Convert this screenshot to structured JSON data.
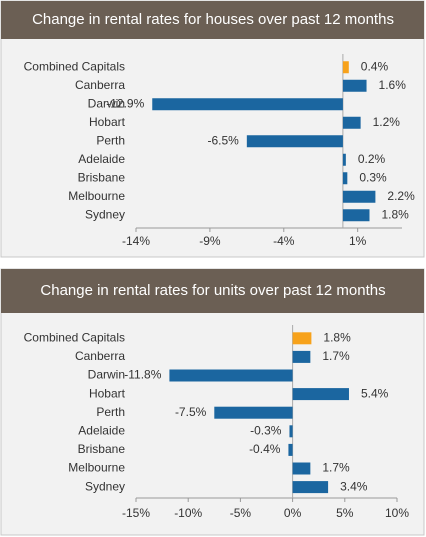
{
  "chart_data": [
    {
      "type": "bar",
      "orientation": "horizontal",
      "title": "Change in rental rates for houses over past 12 months",
      "categories": [
        "Combined Capitals",
        "Canberra",
        "Darwin",
        "Hobart",
        "Perth",
        "Adelaide",
        "Brisbane",
        "Melbourne",
        "Sydney"
      ],
      "values": [
        0.4,
        1.6,
        -12.9,
        1.2,
        -6.5,
        0.2,
        0.3,
        2.2,
        1.8
      ],
      "value_labels": [
        "0.4%",
        "1.6%",
        "-12.9%",
        "1.2%",
        "-6.5%",
        "0.2%",
        "0.3%",
        "2.2%",
        "1.8%"
      ],
      "colors": [
        "#f7a21b",
        "#1b66a0",
        "#1b66a0",
        "#1b66a0",
        "#1b66a0",
        "#1b66a0",
        "#1b66a0",
        "#1b66a0",
        "#1b66a0"
      ],
      "xlim": [
        -14,
        4
      ],
      "xticks": [
        {
          "value": -14,
          "label": "-14%"
        },
        {
          "value": -9,
          "label": "-9%"
        },
        {
          "value": -4,
          "label": "-4%"
        },
        {
          "value": 1,
          "label": "1%"
        }
      ]
    },
    {
      "type": "bar",
      "orientation": "horizontal",
      "title": "Change in rental rates for units over past 12 months",
      "categories": [
        "Combined Capitals",
        "Canberra",
        "Darwin",
        "Hobart",
        "Perth",
        "Adelaide",
        "Brisbane",
        "Melbourne",
        "Sydney"
      ],
      "values": [
        1.8,
        1.7,
        -11.8,
        5.4,
        -7.5,
        -0.3,
        -0.4,
        1.7,
        3.4
      ],
      "value_labels": [
        "1.8%",
        "1.7%",
        "-11.8%",
        "5.4%",
        "-7.5%",
        "-0.3%",
        "-0.4%",
        "1.7%",
        "3.4%"
      ],
      "colors": [
        "#f7a21b",
        "#1b66a0",
        "#1b66a0",
        "#1b66a0",
        "#1b66a0",
        "#1b66a0",
        "#1b66a0",
        "#1b66a0",
        "#1b66a0"
      ],
      "xlim": [
        -15,
        10
      ],
      "xticks": [
        {
          "value": -15,
          "label": "-15%"
        },
        {
          "value": -10,
          "label": "-10%"
        },
        {
          "value": -5,
          "label": "-5%"
        },
        {
          "value": 0,
          "label": "0%"
        },
        {
          "value": 5,
          "label": "5%"
        },
        {
          "value": 10,
          "label": "10%"
        }
      ]
    }
  ]
}
